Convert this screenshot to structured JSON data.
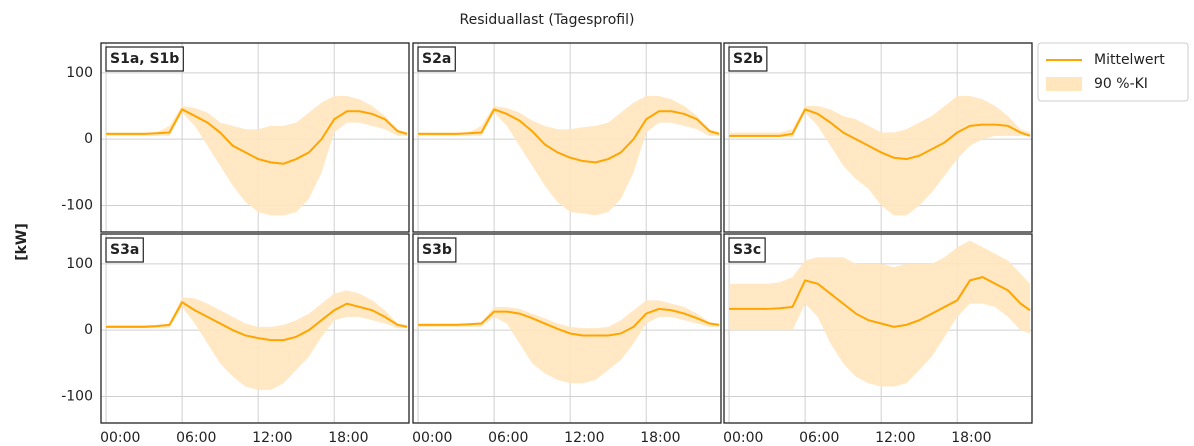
{
  "figure": {
    "title": "Residuallast (Tagesprofil)",
    "ylabel": "[kW]",
    "xlim": [
      -0.4,
      23.9
    ],
    "ylim": [
      -140,
      145
    ],
    "xticks": [
      {
        "value": 0,
        "label": "00:00"
      },
      {
        "value": 6,
        "label": "06:00"
      },
      {
        "value": 12,
        "label": "12:00"
      },
      {
        "value": 18,
        "label": "18:00"
      }
    ],
    "yticks": [
      -100,
      0,
      100
    ],
    "grid": true,
    "legend": "outside upper right"
  },
  "chart_data": [
    {
      "type": "line",
      "label": "S1a, S1b",
      "x": [
        0,
        1,
        2,
        3,
        4,
        5,
        6,
        7,
        8,
        9,
        10,
        11,
        12,
        13,
        14,
        15,
        16,
        17,
        18,
        19,
        20,
        21,
        22,
        23,
        23.75
      ],
      "series": [
        {
          "name": "Mittelwert",
          "color": "#ffa500",
          "values": [
            8,
            8,
            8,
            8,
            9,
            10,
            45,
            35,
            25,
            10,
            -10,
            -20,
            -30,
            -35,
            -37,
            -30,
            -20,
            0,
            30,
            42,
            42,
            38,
            30,
            12,
            8
          ]
        },
        {
          "name": "90 %-KI",
          "color": "#ffe6bd",
          "lower": [
            5,
            5,
            5,
            5,
            5,
            5,
            40,
            20,
            -10,
            -40,
            -70,
            -95,
            -110,
            -115,
            -115,
            -110,
            -90,
            -50,
            10,
            25,
            25,
            20,
            15,
            5,
            5
          ],
          "upper": [
            10,
            10,
            10,
            10,
            10,
            20,
            50,
            47,
            40,
            25,
            20,
            15,
            15,
            20,
            20,
            25,
            40,
            55,
            65,
            65,
            60,
            50,
            35,
            15,
            10
          ]
        }
      ]
    },
    {
      "type": "line",
      "label": "S2a",
      "x": [
        0,
        1,
        2,
        3,
        4,
        5,
        6,
        7,
        8,
        9,
        10,
        11,
        12,
        13,
        14,
        15,
        16,
        17,
        18,
        19,
        20,
        21,
        22,
        23,
        23.75
      ],
      "series": [
        {
          "name": "Mittelwert",
          "color": "#ffa500",
          "values": [
            8,
            8,
            8,
            8,
            9,
            10,
            45,
            38,
            28,
            12,
            -8,
            -20,
            -28,
            -33,
            -35,
            -30,
            -20,
            0,
            30,
            42,
            42,
            38,
            30,
            12,
            8
          ]
        },
        {
          "name": "90 %-KI",
          "color": "#ffe6bd",
          "lower": [
            5,
            5,
            5,
            5,
            5,
            5,
            40,
            20,
            -10,
            -40,
            -70,
            -95,
            -110,
            -112,
            -115,
            -110,
            -90,
            -50,
            10,
            25,
            25,
            20,
            15,
            5,
            5
          ],
          "upper": [
            10,
            10,
            10,
            10,
            10,
            20,
            50,
            47,
            40,
            28,
            20,
            15,
            15,
            18,
            20,
            25,
            40,
            55,
            65,
            65,
            60,
            50,
            35,
            15,
            10
          ]
        }
      ]
    },
    {
      "type": "line",
      "label": "S2b",
      "x": [
        0,
        1,
        2,
        3,
        4,
        5,
        6,
        7,
        8,
        9,
        10,
        11,
        12,
        13,
        14,
        15,
        16,
        17,
        18,
        19,
        20,
        21,
        22,
        23,
        23.75
      ],
      "series": [
        {
          "name": "Mittelwert",
          "color": "#ffa500",
          "values": [
            5,
            5,
            5,
            5,
            5,
            8,
            45,
            38,
            25,
            10,
            0,
            -10,
            -20,
            -28,
            -30,
            -25,
            -15,
            -5,
            10,
            20,
            22,
            22,
            20,
            10,
            5
          ]
        },
        {
          "name": "90 %-KI",
          "color": "#ffe6bd",
          "lower": [
            3,
            3,
            3,
            3,
            3,
            3,
            40,
            20,
            -10,
            -40,
            -60,
            -75,
            -100,
            -115,
            -115,
            -100,
            -80,
            -55,
            -30,
            -10,
            0,
            5,
            5,
            5,
            5
          ],
          "upper": [
            10,
            10,
            10,
            10,
            10,
            15,
            50,
            50,
            45,
            35,
            30,
            20,
            10,
            10,
            15,
            25,
            35,
            50,
            65,
            65,
            60,
            50,
            35,
            15,
            10
          ]
        }
      ]
    },
    {
      "type": "line",
      "label": "S3a",
      "x": [
        0,
        1,
        2,
        3,
        4,
        5,
        6,
        7,
        8,
        9,
        10,
        11,
        12,
        13,
        14,
        15,
        16,
        17,
        18,
        19,
        20,
        21,
        22,
        23,
        23.75
      ],
      "series": [
        {
          "name": "Mittelwert",
          "color": "#ffa500",
          "values": [
            5,
            5,
            5,
            5,
            6,
            8,
            42,
            30,
            20,
            10,
            0,
            -8,
            -12,
            -15,
            -15,
            -10,
            0,
            15,
            30,
            40,
            35,
            30,
            20,
            8,
            5
          ]
        },
        {
          "name": "90 %-KI",
          "color": "#ffe6bd",
          "lower": [
            3,
            3,
            3,
            3,
            3,
            3,
            35,
            10,
            -20,
            -50,
            -70,
            -85,
            -90,
            -90,
            -80,
            -60,
            -40,
            -10,
            15,
            20,
            20,
            15,
            10,
            3,
            3
          ],
          "upper": [
            8,
            8,
            8,
            8,
            8,
            10,
            50,
            48,
            40,
            30,
            20,
            10,
            5,
            5,
            8,
            15,
            25,
            40,
            55,
            60,
            55,
            45,
            30,
            10,
            8
          ]
        }
      ]
    },
    {
      "type": "line",
      "label": "S3b",
      "x": [
        0,
        1,
        2,
        3,
        4,
        5,
        6,
        7,
        8,
        9,
        10,
        11,
        12,
        13,
        14,
        15,
        16,
        17,
        18,
        19,
        20,
        21,
        22,
        23,
        23.75
      ],
      "series": [
        {
          "name": "Mittelwert",
          "color": "#ffa500",
          "values": [
            8,
            8,
            8,
            8,
            9,
            10,
            28,
            28,
            25,
            18,
            10,
            2,
            -5,
            -8,
            -8,
            -8,
            -5,
            5,
            25,
            32,
            30,
            25,
            18,
            10,
            8
          ]
        },
        {
          "name": "90 %-KI",
          "color": "#ffe6bd",
          "lower": [
            5,
            5,
            5,
            5,
            5,
            5,
            20,
            10,
            -20,
            -50,
            -65,
            -75,
            -80,
            -80,
            -75,
            -60,
            -45,
            -20,
            10,
            20,
            20,
            15,
            10,
            5,
            5
          ],
          "upper": [
            10,
            10,
            10,
            10,
            10,
            12,
            35,
            35,
            32,
            25,
            18,
            10,
            5,
            3,
            3,
            5,
            15,
            30,
            45,
            45,
            40,
            35,
            25,
            12,
            10
          ]
        }
      ]
    },
    {
      "type": "line",
      "label": "S3c",
      "x": [
        0,
        1,
        2,
        3,
        4,
        5,
        6,
        7,
        8,
        9,
        10,
        11,
        12,
        13,
        14,
        15,
        16,
        17,
        18,
        19,
        20,
        21,
        22,
        23,
        23.75
      ],
      "series": [
        {
          "name": "Mittelwert",
          "color": "#ffa500",
          "values": [
            32,
            32,
            32,
            32,
            33,
            35,
            75,
            70,
            55,
            40,
            25,
            15,
            10,
            5,
            8,
            15,
            25,
            35,
            45,
            75,
            80,
            70,
            60,
            40,
            30
          ]
        },
        {
          "name": "90 %-KI",
          "color": "#ffe6bd",
          "lower": [
            0,
            0,
            0,
            0,
            0,
            0,
            40,
            20,
            -20,
            -50,
            -70,
            -80,
            -85,
            -85,
            -80,
            -60,
            -40,
            -10,
            20,
            40,
            40,
            35,
            20,
            0,
            -5
          ],
          "upper": [
            70,
            70,
            70,
            70,
            72,
            80,
            105,
            110,
            110,
            110,
            100,
            100,
            100,
            95,
            100,
            100,
            100,
            110,
            125,
            135,
            125,
            115,
            105,
            85,
            70
          ]
        }
      ]
    }
  ]
}
